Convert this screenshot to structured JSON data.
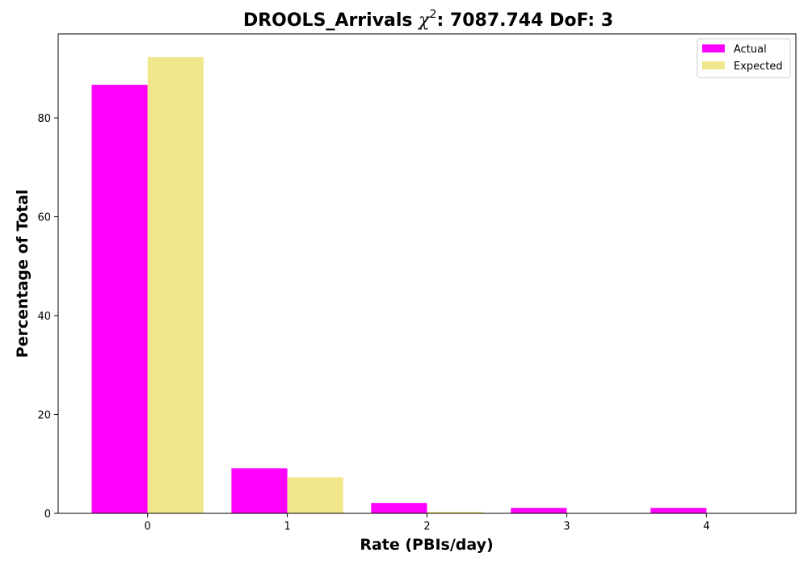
{
  "chart_data": {
    "type": "bar",
    "title": {
      "main": "DROOLS_Arrivals ",
      "chi": "χ",
      "sup": "2",
      "rest": ": 7087.744 DoF: 3"
    },
    "xlabel": "Rate (PBIs/day)",
    "ylabel": "Percentage of Total",
    "categories": [
      "0",
      "1",
      "2",
      "3",
      "4"
    ],
    "x": [
      0,
      1,
      2,
      3,
      4
    ],
    "xlim": [
      -0.64,
      4.64
    ],
    "ylim": [
      0,
      97
    ],
    "yticks": [
      0,
      20,
      40,
      60,
      80
    ],
    "xticks": [
      0,
      1,
      2,
      3,
      4
    ],
    "series": [
      {
        "name": "Actual",
        "color": "#ff00ff",
        "values": [
          86.7,
          9.1,
          2.1,
          1.1,
          1.1
        ]
      },
      {
        "name": "Expected",
        "color": "#f0e68c",
        "values": [
          92.3,
          7.3,
          0.3,
          0.0,
          0.0
        ]
      }
    ],
    "legend": {
      "position": "top-right"
    },
    "grid": false
  }
}
